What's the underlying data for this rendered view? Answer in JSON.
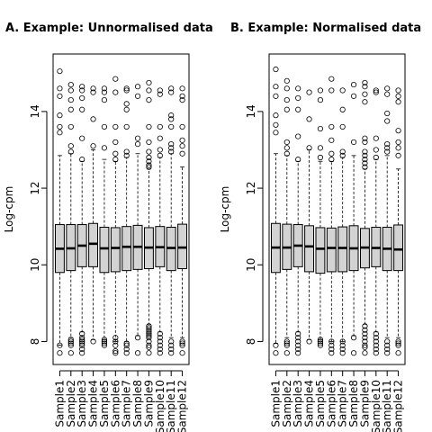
{
  "chart_data": [
    {
      "type": "boxplot",
      "title": "A. Example: Unnormalised data",
      "ylabel": "Log-cpm",
      "xlabel": "",
      "ylim": [
        7.4,
        15.5
      ],
      "yticks": [
        8,
        10,
        12,
        14
      ],
      "categories": [
        "Sample1",
        "Sample2",
        "Sample3",
        "Sample4",
        "Sample5",
        "Sample6",
        "Sample7",
        "Sample8",
        "Sample9",
        "Sample10",
        "Sample11",
        "Sample12"
      ],
      "box_fill": "#d3d3d3",
      "boxes": [
        {
          "min": 7.9,
          "q1": 9.8,
          "median": 10.42,
          "q3": 11.05,
          "max": 12.85,
          "outliers_high": [
            13.45,
            13.6,
            13.9,
            14.4,
            14.6,
            15.05
          ],
          "outliers_low": [
            7.7,
            7.9
          ]
        },
        {
          "min": 8.1,
          "q1": 9.85,
          "median": 10.43,
          "q3": 11.05,
          "max": 12.9,
          "outliers_high": [
            12.95,
            13.1,
            13.6,
            14.05,
            14.3,
            14.55,
            14.7
          ],
          "outliers_low": [
            7.7,
            7.9,
            7.95,
            8.0,
            8.05
          ]
        },
        {
          "min": 8.25,
          "q1": 9.95,
          "median": 10.5,
          "q3": 11.05,
          "max": 12.7,
          "outliers_high": [
            12.75,
            13.3,
            14.05,
            14.35,
            14.55,
            14.65
          ],
          "outliers_low": [
            7.7,
            7.8,
            7.9,
            7.95,
            8.0,
            8.05,
            8.1,
            8.2
          ]
        },
        {
          "min": 8.05,
          "q1": 9.95,
          "median": 10.55,
          "q3": 11.08,
          "max": 13.0,
          "outliers_high": [
            13.1,
            13.8,
            14.5,
            14.6
          ],
          "outliers_low": [
            8.0
          ]
        },
        {
          "min": 8.05,
          "q1": 9.8,
          "median": 10.43,
          "q3": 10.98,
          "max": 12.75,
          "outliers_high": [
            13.05,
            13.6,
            14.3,
            14.5,
            14.6
          ],
          "outliers_low": [
            7.9,
            7.95,
            8.0,
            8.05
          ]
        },
        {
          "min": 8.0,
          "q1": 9.82,
          "median": 10.44,
          "q3": 10.97,
          "max": 12.7,
          "outliers_high": [
            12.75,
            12.9,
            13.2,
            13.6,
            14.5,
            14.85
          ],
          "outliers_low": [
            7.7,
            7.75,
            7.9,
            8.0,
            8.1
          ]
        },
        {
          "min": 8.0,
          "q1": 9.85,
          "median": 10.47,
          "q3": 11.0,
          "max": 12.8,
          "outliers_high": [
            12.85,
            12.95,
            13.6,
            14.05,
            14.2,
            14.55,
            14.6
          ],
          "outliers_low": [
            7.7,
            7.8,
            7.9,
            7.95
          ]
        },
        {
          "min": 8.15,
          "q1": 9.88,
          "median": 10.47,
          "q3": 11.03,
          "max": 12.9,
          "outliers_high": [
            13.15,
            13.3,
            14.4,
            14.65
          ],
          "outliers_low": [
            7.7,
            8.1
          ]
        },
        {
          "min": 8.45,
          "q1": 9.9,
          "median": 10.45,
          "q3": 10.97,
          "max": 12.5,
          "outliers_high": [
            12.55,
            12.6,
            12.7,
            12.8,
            12.95,
            13.2,
            13.6,
            14.3,
            14.55,
            14.75
          ],
          "outliers_low": [
            7.7,
            7.85,
            7.9,
            8.0,
            8.1,
            8.15,
            8.2,
            8.25,
            8.3,
            8.35,
            8.4
          ]
        },
        {
          "min": 8.25,
          "q1": 9.95,
          "median": 10.46,
          "q3": 11.0,
          "max": 12.8,
          "outliers_high": [
            12.85,
            13.0,
            13.3,
            13.6,
            14.45,
            14.55
          ],
          "outliers_low": [
            7.7,
            7.8,
            7.9,
            8.0,
            8.1,
            8.2
          ]
        },
        {
          "min": 8.1,
          "q1": 9.85,
          "median": 10.44,
          "q3": 10.98,
          "max": 12.9,
          "outliers_high": [
            12.95,
            13.05,
            13.15,
            13.6,
            13.8,
            13.9,
            14.5,
            14.6
          ],
          "outliers_low": [
            7.7,
            7.8,
            7.9,
            8.0
          ]
        },
        {
          "min": 8.1,
          "q1": 9.9,
          "median": 10.45,
          "q3": 11.06,
          "max": 12.55,
          "outliers_high": [
            12.9,
            13.1,
            13.25,
            13.6,
            14.3,
            14.4,
            14.6
          ],
          "outliers_low": [
            7.7,
            7.9,
            7.95,
            8.0
          ]
        }
      ]
    },
    {
      "type": "boxplot",
      "title": "B. Example: Normalised data",
      "ylabel": "Log-cpm",
      "xlabel": "",
      "ylim": [
        7.4,
        15.5
      ],
      "yticks": [
        8,
        10,
        12,
        14
      ],
      "categories": [
        "Sample1",
        "Sample2",
        "Sample3",
        "Sample4",
        "Sample5",
        "Sample6",
        "Sample7",
        "Sample8",
        "Sample9",
        "Sample10",
        "Sample11",
        "Sample12"
      ],
      "box_fill": "#d3d3d3",
      "boxes": [
        {
          "min": 7.95,
          "q1": 9.8,
          "median": 10.45,
          "q3": 11.08,
          "max": 12.9,
          "outliers_high": [
            13.45,
            13.65,
            13.9,
            14.4,
            14.65,
            15.1
          ],
          "outliers_low": [
            7.7,
            7.9
          ]
        },
        {
          "min": 8.1,
          "q1": 9.88,
          "median": 10.45,
          "q3": 11.06,
          "max": 12.85,
          "outliers_high": [
            12.9,
            13.05,
            13.2,
            14.05,
            14.3,
            14.6,
            14.8
          ],
          "outliers_low": [
            7.7,
            7.9,
            7.95,
            8.0
          ]
        },
        {
          "min": 8.25,
          "q1": 9.95,
          "median": 10.5,
          "q3": 11.05,
          "max": 12.7,
          "outliers_high": [
            12.75,
            13.35,
            14.05,
            14.35,
            14.6
          ],
          "outliers_low": [
            7.7,
            7.8,
            7.9,
            8.0,
            8.1,
            8.2
          ]
        },
        {
          "min": 8.05,
          "q1": 9.82,
          "median": 10.48,
          "q3": 11.02,
          "max": 13.0,
          "outliers_high": [
            13.05,
            13.8,
            14.5
          ],
          "outliers_low": [
            8.0
          ]
        },
        {
          "min": 8.05,
          "q1": 9.78,
          "median": 10.42,
          "q3": 10.97,
          "max": 12.7,
          "outliers_high": [
            12.8,
            13.05,
            13.55,
            14.3,
            14.55
          ],
          "outliers_low": [
            7.9,
            7.95,
            8.0,
            8.05
          ]
        },
        {
          "min": 8.0,
          "q1": 9.82,
          "median": 10.44,
          "q3": 10.96,
          "max": 12.7,
          "outliers_high": [
            12.75,
            12.9,
            13.25,
            13.6,
            14.55,
            14.85
          ],
          "outliers_low": [
            7.7,
            7.8,
            7.9,
            8.0
          ]
        },
        {
          "min": 8.0,
          "q1": 9.82,
          "median": 10.44,
          "q3": 10.99,
          "max": 12.8,
          "outliers_high": [
            12.85,
            12.95,
            13.6,
            14.05,
            14.55
          ],
          "outliers_low": [
            7.7,
            7.8,
            7.9,
            8.0
          ]
        },
        {
          "min": 8.15,
          "q1": 9.85,
          "median": 10.43,
          "q3": 11.02,
          "max": 12.85,
          "outliers_high": [
            13.2,
            14.4,
            14.7
          ],
          "outliers_low": [
            7.7,
            8.1
          ]
        },
        {
          "min": 8.45,
          "q1": 9.92,
          "median": 10.45,
          "q3": 10.95,
          "max": 12.5,
          "outliers_high": [
            12.55,
            12.65,
            12.75,
            12.85,
            12.95,
            13.2,
            13.3,
            14.25,
            14.45,
            14.65,
            14.75
          ],
          "outliers_low": [
            7.7,
            7.85,
            7.9,
            8.0,
            8.1,
            8.2,
            8.3,
            8.4
          ]
        },
        {
          "min": 8.25,
          "q1": 9.95,
          "median": 10.44,
          "q3": 10.98,
          "max": 12.75,
          "outliers_high": [
            12.8,
            13.0,
            13.3,
            14.5,
            14.55
          ],
          "outliers_low": [
            7.7,
            7.8,
            7.9,
            8.0,
            8.1,
            8.2
          ]
        },
        {
          "min": 8.1,
          "q1": 9.85,
          "median": 10.42,
          "q3": 10.98,
          "max": 12.85,
          "outliers_high": [
            12.95,
            13.05,
            13.15,
            13.75,
            13.95,
            14.45,
            14.6
          ],
          "outliers_low": [
            7.7,
            7.8,
            7.9,
            8.0
          ]
        },
        {
          "min": 8.1,
          "q1": 9.85,
          "median": 10.4,
          "q3": 11.04,
          "max": 12.5,
          "outliers_high": [
            12.85,
            13.05,
            13.2,
            13.5,
            14.25,
            14.4,
            14.55
          ],
          "outliers_low": [
            7.7,
            7.9,
            7.95,
            8.0
          ]
        }
      ]
    }
  ]
}
